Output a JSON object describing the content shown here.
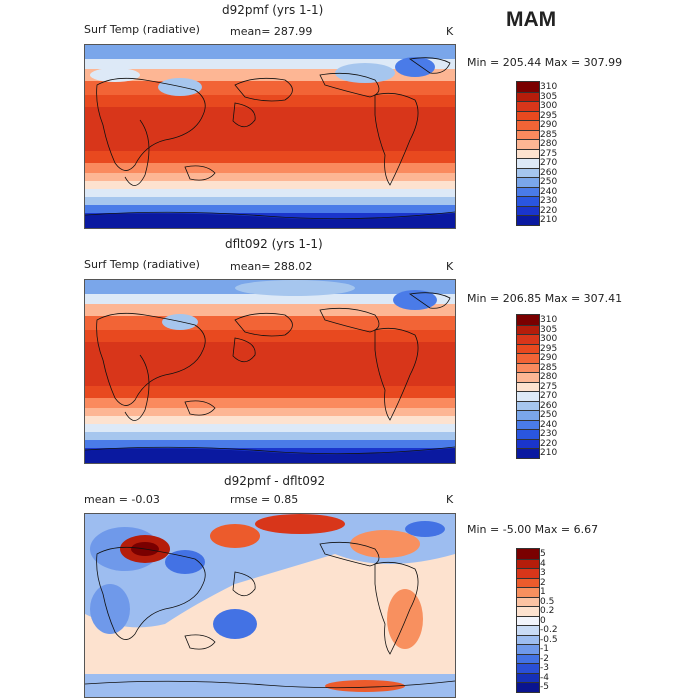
{
  "season": "MAM",
  "panels": [
    {
      "title": "d92pmf (yrs 1-1)",
      "left": "Surf Temp (radiative)",
      "mid": "mean= 287.99",
      "right": "K",
      "minmax": "Min = 205.44 Max = 307.99",
      "levels": [
        "310",
        "305",
        "300",
        "295",
        "290",
        "285",
        "280",
        "275",
        "270",
        "260",
        "250",
        "240",
        "230",
        "220",
        "210"
      ],
      "colors": [
        "#7a0000",
        "#b51d0b",
        "#d8361a",
        "#e8491f",
        "#f26436",
        "#fa8a5e",
        "#fdb694",
        "#fde2cf",
        "#dde9f7",
        "#a6c6ee",
        "#7aa6ea",
        "#4a7be8",
        "#2a56e0",
        "#1a35cc",
        "#0a19a0"
      ]
    },
    {
      "title": "dflt092 (yrs 1-1)",
      "left": "Surf Temp (radiative)",
      "mid": "mean= 288.02",
      "right": "K",
      "minmax": "Min = 206.85 Max = 307.41",
      "levels": [
        "310",
        "305",
        "300",
        "295",
        "290",
        "285",
        "280",
        "275",
        "270",
        "260",
        "250",
        "240",
        "230",
        "220",
        "210"
      ],
      "colors": [
        "#7a0000",
        "#b51d0b",
        "#d8361a",
        "#e8491f",
        "#f26436",
        "#fa8a5e",
        "#fdb694",
        "#fde2cf",
        "#dde9f7",
        "#a6c6ee",
        "#7aa6ea",
        "#4a7be8",
        "#2a56e0",
        "#1a35cc",
        "#0a19a0"
      ]
    },
    {
      "title": "d92pmf - dflt092",
      "left": "mean =   -0.03",
      "mid": "rmse =    0.85",
      "right": "K",
      "minmax": "Min = -5.00 Max =   6.67",
      "levels": [
        "5",
        "4",
        "3",
        "2",
        "1",
        "0.5",
        "0.2",
        "0",
        "-0.2",
        "-0.5",
        "-1",
        "-2",
        "-3",
        "-4",
        "-5"
      ],
      "colors": [
        "#7a0000",
        "#b51d0b",
        "#d8361a",
        "#ec5b2c",
        "#f8905f",
        "#fcc3a3",
        "#fde2cf",
        "#f2f4fb",
        "#c9dbf5",
        "#9dbdf0",
        "#6f99ea",
        "#4372e4",
        "#2a4fd6",
        "#1630b8",
        "#0a1490"
      ]
    }
  ]
}
